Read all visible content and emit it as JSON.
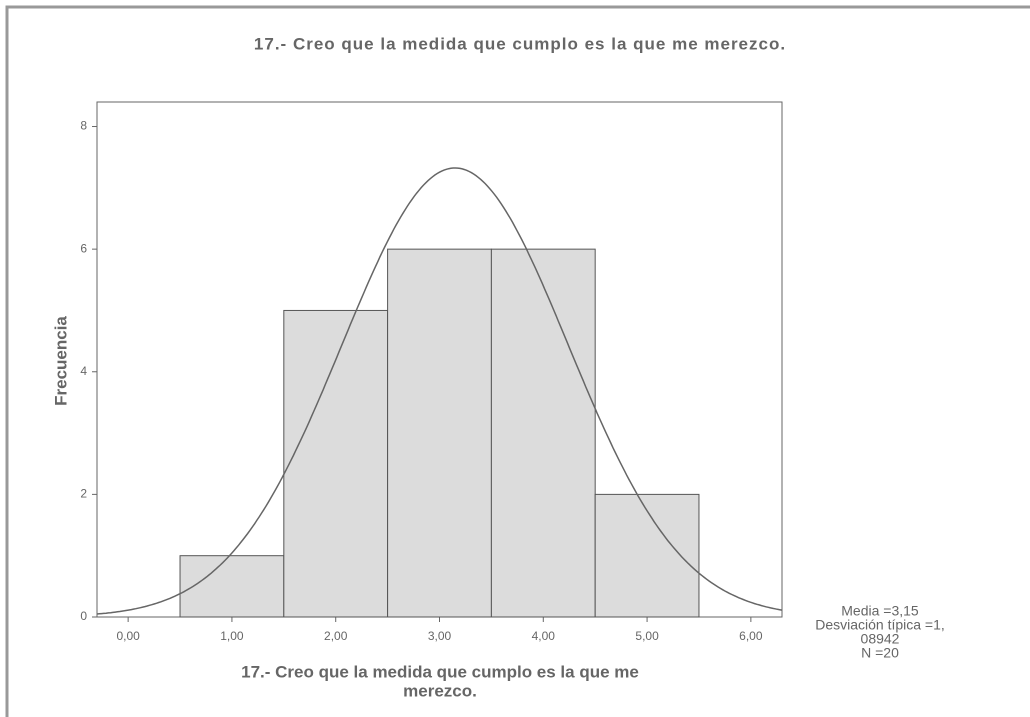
{
  "chart_data": {
    "type": "histogram",
    "title": "17.- Creo que la medida que cumplo es la que me merezco.",
    "xlabel": [
      "17.- Creo que la medida que cumplo es la que me",
      "merezco."
    ],
    "ylabel": "Frecuencia",
    "bins": [
      0.5,
      1.5,
      2.5,
      3.5,
      4.5,
      5.5
    ],
    "values": [
      1,
      5,
      6,
      6,
      2
    ],
    "color": "#dcdcdc",
    "xlim": [
      -0.3,
      6.3
    ],
    "xticks": [
      {
        "value": 0,
        "label": "0,00"
      },
      {
        "value": 1,
        "label": "1,00"
      },
      {
        "value": 2,
        "label": "2,00"
      },
      {
        "value": 3,
        "label": "3,00"
      },
      {
        "value": 4,
        "label": "4,00"
      },
      {
        "value": 5,
        "label": "5,00"
      },
      {
        "value": 6,
        "label": "6,00"
      }
    ],
    "ylim": [
      0,
      8.4
    ],
    "yticks": [
      0,
      2,
      4,
      6,
      8
    ],
    "normal": {
      "mean": 3.15,
      "sd": 1.08942,
      "n": 20
    },
    "stats_text": [
      "Media =3,15",
      "Desviación típica =1,",
      "08942",
      "N =20"
    ]
  }
}
